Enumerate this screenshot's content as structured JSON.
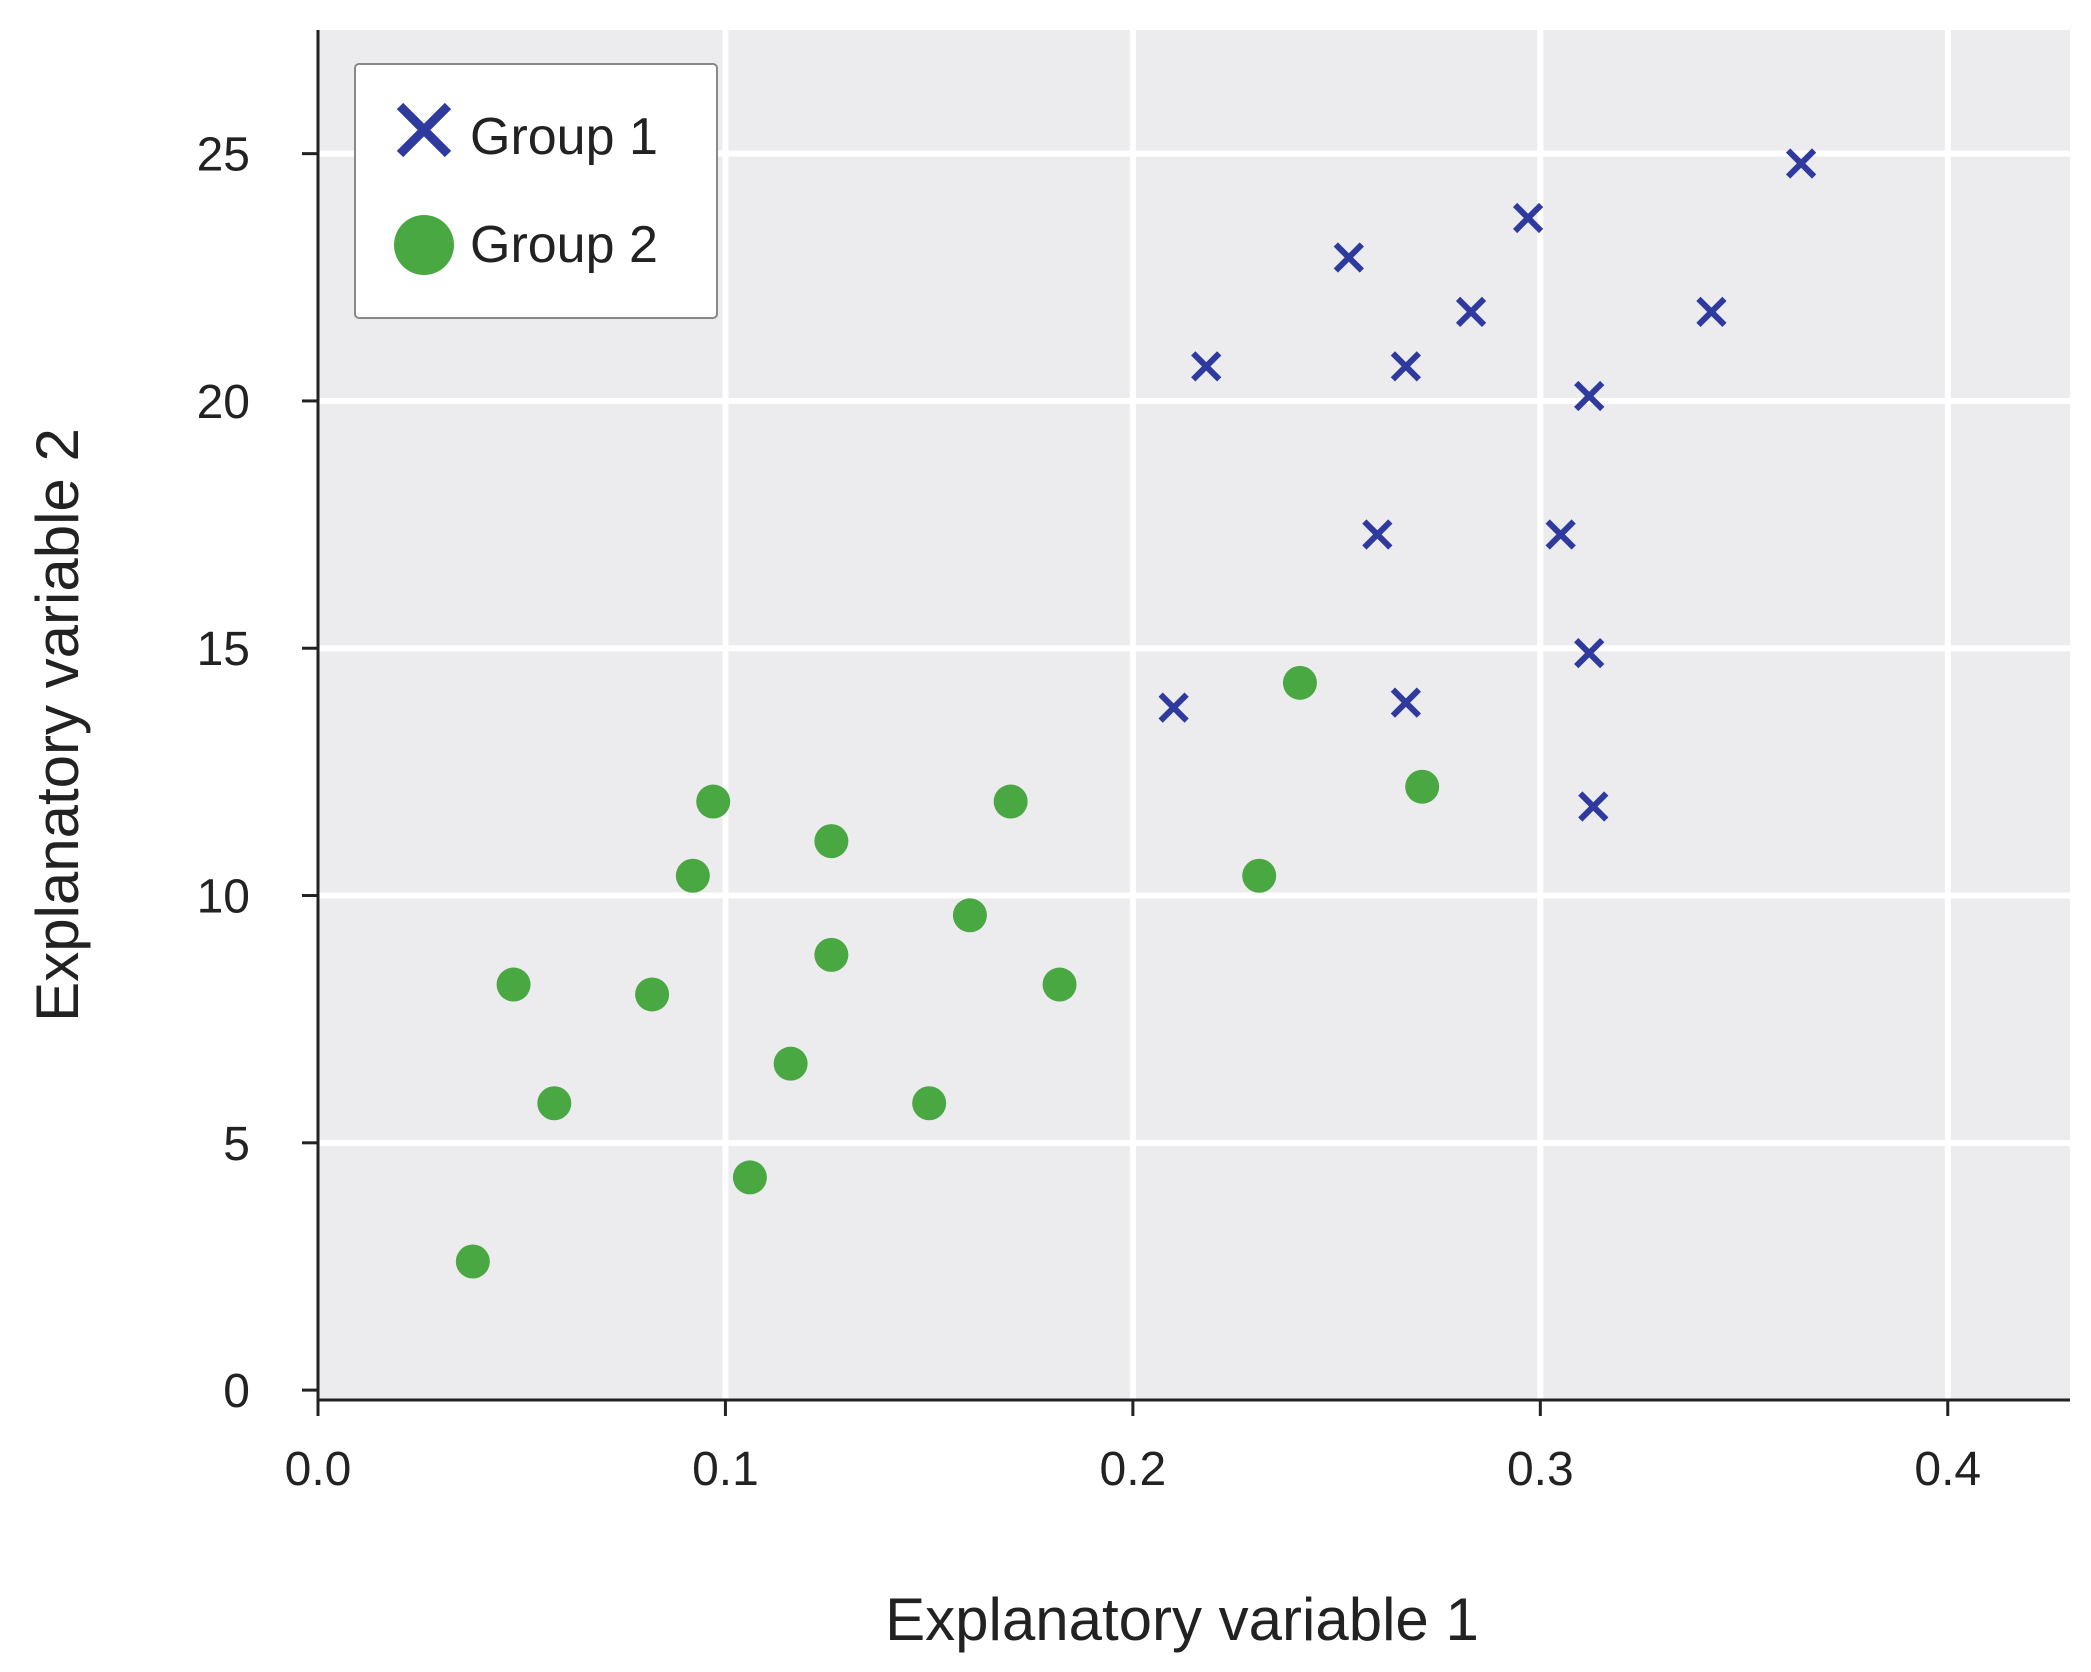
{
  "chart_data": {
    "type": "scatter",
    "title": "",
    "xlabel": "Explanatory variable 1",
    "ylabel": "Explanatory variable 2",
    "xlim": [
      0.0,
      0.43
    ],
    "ylim": [
      -0.2,
      27.5
    ],
    "x_ticks": [
      {
        "value": 0.0,
        "label": "0.0"
      },
      {
        "value": 0.1,
        "label": "0.1"
      },
      {
        "value": 0.2,
        "label": "0.2"
      },
      {
        "value": 0.3,
        "label": "0.3"
      },
      {
        "value": 0.4,
        "label": "0.4"
      }
    ],
    "y_ticks": [
      {
        "value": 0,
        "label": "0"
      },
      {
        "value": 5,
        "label": "5"
      },
      {
        "value": 10,
        "label": "10"
      },
      {
        "value": 15,
        "label": "15"
      },
      {
        "value": 20,
        "label": "20"
      },
      {
        "value": 25,
        "label": "25"
      }
    ],
    "grid": true,
    "legend_position": "top-left",
    "series": [
      {
        "name": "Group 1",
        "marker": "x",
        "color": "#2e3a9e",
        "points": [
          [
            0.21,
            13.8
          ],
          [
            0.218,
            20.7
          ],
          [
            0.253,
            22.9
          ],
          [
            0.26,
            17.3
          ],
          [
            0.267,
            20.7
          ],
          [
            0.267,
            13.9
          ],
          [
            0.283,
            21.8
          ],
          [
            0.297,
            23.7
          ],
          [
            0.305,
            17.3
          ],
          [
            0.312,
            20.1
          ],
          [
            0.312,
            14.9
          ],
          [
            0.313,
            11.8
          ],
          [
            0.342,
            21.8
          ],
          [
            0.364,
            24.8
          ]
        ]
      },
      {
        "name": "Group 2",
        "marker": "circle",
        "color": "#4aa843",
        "points": [
          [
            0.038,
            2.6
          ],
          [
            0.048,
            8.2
          ],
          [
            0.058,
            5.8
          ],
          [
            0.082,
            8.0
          ],
          [
            0.092,
            10.4
          ],
          [
            0.097,
            11.9
          ],
          [
            0.106,
            4.3
          ],
          [
            0.116,
            6.6
          ],
          [
            0.126,
            11.1
          ],
          [
            0.126,
            8.8
          ],
          [
            0.15,
            5.8
          ],
          [
            0.16,
            9.6
          ],
          [
            0.17,
            11.9
          ],
          [
            0.182,
            8.2
          ],
          [
            0.231,
            10.4
          ],
          [
            0.241,
            14.3
          ],
          [
            0.271,
            12.2
          ]
        ]
      }
    ]
  }
}
